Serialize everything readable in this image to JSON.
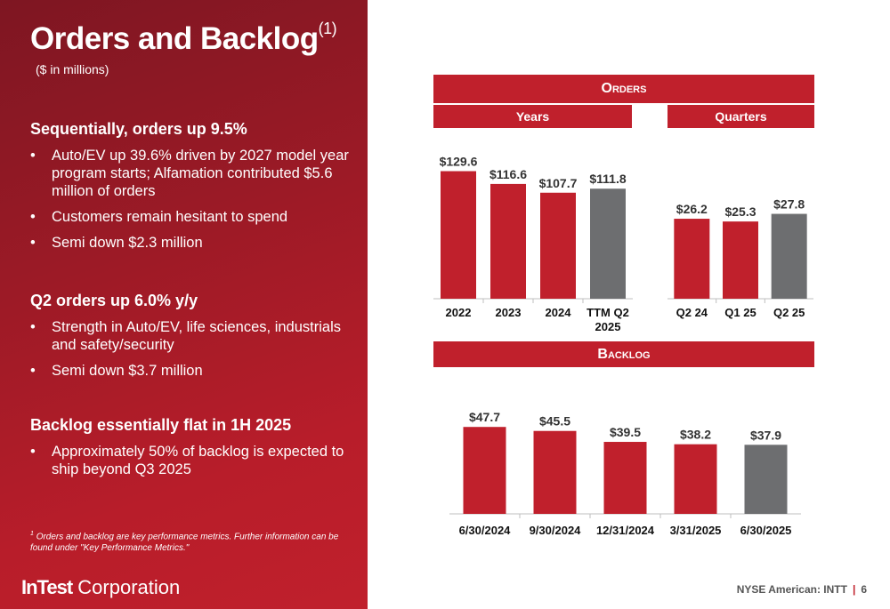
{
  "slide": {
    "title": "Orders and Backlog",
    "title_footnote_mark": "(1)",
    "subtitle": "($ in millions)",
    "sections": [
      {
        "heading": "Sequentially, orders up 9.5%",
        "bullets": [
          "Auto/EV up 39.6% driven by 2027 model year program starts; Alfamation contributed $5.6 million of orders",
          "Customers remain hesitant to spend",
          "Semi down $2.3 million"
        ]
      },
      {
        "heading": "Q2 orders up 6.0% y/y",
        "bullets": [
          "Strength in Auto/EV, life sciences, industrials and safety/security",
          "Semi down $3.7 million"
        ]
      },
      {
        "heading": "Backlog essentially flat in 1H 2025",
        "bullets": [
          "Approximately 50% of backlog is expected to ship beyond Q3 2025"
        ]
      }
    ],
    "footnote_mark": "1",
    "footnote": "Orders and backlog are key performance metrics. Further information can be found under \"Key Performance Metrics.\"",
    "logo_brand": "InTest",
    "logo_text": "Corporation",
    "footer_exchange": "NYSE American: INTT",
    "footer_separator": "|",
    "page_number": "6",
    "orders_banner": "Orders",
    "years_banner": "Years",
    "quarters_banner": "Quarters",
    "backlog_banner": "Backlog"
  },
  "colors": {
    "red": "#c0202c",
    "gray": "#6d6e70",
    "dark_red": "#7e1622"
  },
  "chart_data": [
    {
      "type": "bar",
      "name": "Orders - Years",
      "categories": [
        "2022",
        "2023",
        "2024",
        "TTM Q2 2025"
      ],
      "values": [
        129.6,
        116.6,
        107.7,
        111.8
      ],
      "labels": [
        "$129.6",
        "$116.6",
        "$107.7",
        "$111.8"
      ],
      "highlight_index": 3,
      "ylim": [
        0,
        140
      ],
      "grid": false
    },
    {
      "type": "bar",
      "name": "Orders - Quarters",
      "categories": [
        "Q2 24",
        "Q1 25",
        "Q2 25"
      ],
      "values": [
        26.2,
        25.3,
        27.8
      ],
      "labels": [
        "$26.2",
        "$25.3",
        "$27.8"
      ],
      "highlight_index": 2,
      "ylim": [
        0,
        30
      ],
      "grid": false
    },
    {
      "type": "bar",
      "name": "Backlog",
      "categories": [
        "6/30/2024",
        "9/30/2024",
        "12/31/2024",
        "3/31/2025",
        "6/30/2025"
      ],
      "values": [
        47.7,
        45.5,
        39.5,
        38.2,
        37.9
      ],
      "labels": [
        "$47.7",
        "$45.5",
        "$39.5",
        "$38.2",
        "$37.9"
      ],
      "highlight_index": 4,
      "ylim": [
        0,
        60
      ],
      "grid": false
    }
  ]
}
